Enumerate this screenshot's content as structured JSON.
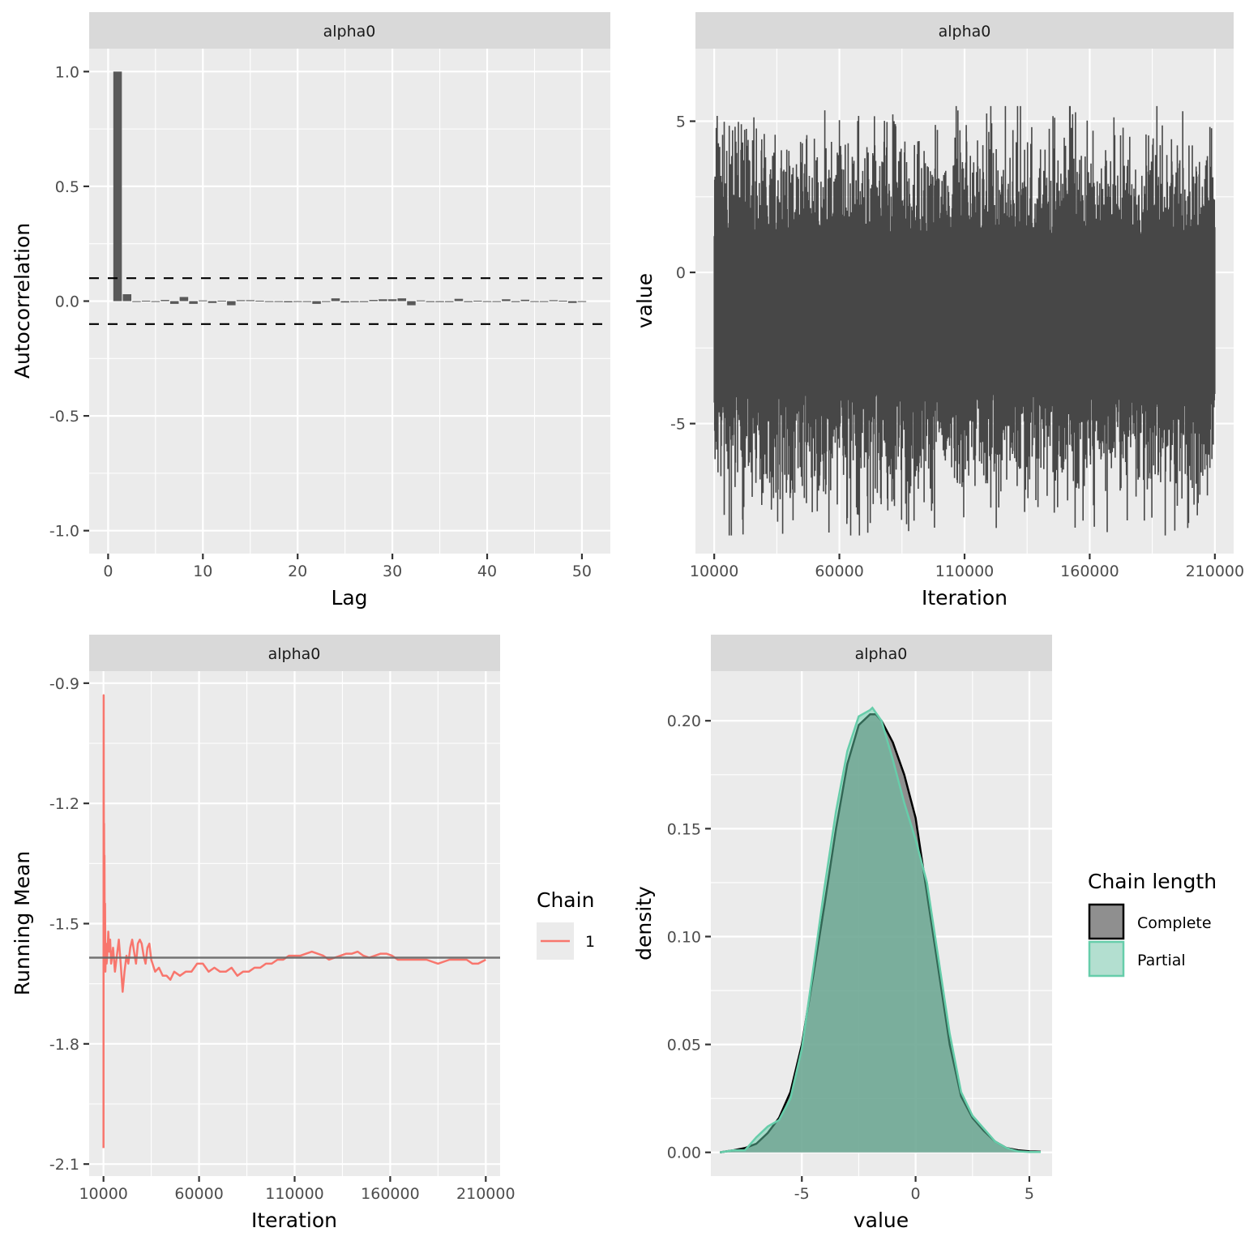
{
  "chart_data": [
    {
      "id": "acf",
      "type": "bar",
      "facet": "alpha0",
      "title": "",
      "xlabel": "Lag",
      "ylabel": "Autocorrelation",
      "xlim": [
        -2,
        53
      ],
      "ylim": [
        -1.1,
        1.1
      ],
      "xticks": [
        0,
        10,
        20,
        30,
        40,
        50
      ],
      "xtick_labels": [
        "0",
        "10",
        "20",
        "30",
        "40",
        "50"
      ],
      "yticks": [
        -1.0,
        -0.5,
        0.0,
        0.5,
        1.0
      ],
      "ytick_labels": [
        "-1.0",
        "-0.5",
        "0.0",
        "0.5",
        "1.0"
      ],
      "confidence_band": [
        -0.1,
        0.1
      ],
      "bar_color": "#595959",
      "x": [
        1,
        2,
        3,
        4,
        5,
        6,
        7,
        8,
        9,
        10,
        11,
        12,
        13,
        14,
        15,
        16,
        17,
        18,
        19,
        20,
        21,
        22,
        23,
        24,
        25,
        26,
        27,
        28,
        29,
        30,
        31,
        32,
        33,
        34,
        35,
        36,
        37,
        38,
        39,
        40,
        41,
        42,
        43,
        44,
        45,
        46,
        47,
        48,
        49,
        50
      ],
      "values": [
        1.0,
        0.03,
        -0.003,
        0.002,
        0.0,
        0.005,
        -0.012,
        0.018,
        -0.012,
        0.003,
        -0.008,
        0.002,
        -0.018,
        0.004,
        0.004,
        0.002,
        0.0,
        0.0,
        -0.005,
        -0.003,
        -0.003,
        -0.012,
        0.0,
        0.012,
        -0.006,
        -0.004,
        -0.004,
        0.005,
        0.008,
        0.008,
        0.012,
        -0.018,
        0.003,
        -0.004,
        -0.004,
        -0.004,
        0.01,
        -0.004,
        0.002,
        0.0,
        0.0,
        0.008,
        -0.004,
        0.006,
        0.0,
        -0.003,
        0.004,
        0.002,
        -0.008,
        0.0
      ]
    },
    {
      "id": "trace",
      "type": "line",
      "facet": "alpha0",
      "xlabel": "Iteration",
      "ylabel": "value",
      "xlim": [
        2500,
        217500
      ],
      "ylim": [
        -9.3,
        7.4
      ],
      "xticks": [
        10000,
        60000,
        110000,
        160000,
        210000
      ],
      "xtick_labels": [
        "10000",
        "60000",
        "110000",
        "160000",
        "210000"
      ],
      "yticks": [
        -5,
        0,
        5
      ],
      "ytick_labels": [
        "-5",
        "0",
        "5"
      ],
      "line_color": "#474747",
      "summary": {
        "center": -1.6,
        "typical_low": -5.2,
        "typical_high": 2.2,
        "min": -8.7,
        "max": 5.5,
        "n_iterations": 200000
      }
    },
    {
      "id": "running-mean",
      "type": "line",
      "facet": "alpha0",
      "xlabel": "Iteration",
      "ylabel": "Running Mean",
      "xlim": [
        2500,
        217500
      ],
      "ylim": [
        -2.13,
        -0.87
      ],
      "xticks": [
        10000,
        60000,
        110000,
        160000,
        210000
      ],
      "xtick_labels": [
        "10000",
        "60000",
        "110000",
        "160000",
        "210000"
      ],
      "yticks": [
        -2.1,
        -1.8,
        -1.5,
        -1.2,
        -0.9
      ],
      "ytick_labels": [
        "-2.1",
        "-1.8",
        "-1.5",
        "-1.2",
        "-0.9"
      ],
      "reference_line": -1.585,
      "reference_color": "#666666",
      "legend": {
        "title": "Chain",
        "entries": [
          {
            "label": "1",
            "color": "#F8766D"
          }
        ]
      },
      "series": [
        {
          "name": "1",
          "color": "#F8766D",
          "x": [
            10000,
            10050,
            10100,
            10150,
            10200,
            10300,
            10400,
            10500,
            10600,
            10800,
            11000,
            11300,
            11600,
            12000,
            12500,
            13000,
            13500,
            14000,
            15000,
            16000,
            17000,
            18000,
            19000,
            20000,
            21000,
            22000,
            23000,
            24000,
            25000,
            26000,
            27000,
            28000,
            29000,
            30000,
            31000,
            32000,
            33000,
            34000,
            35000,
            37000,
            39000,
            41000,
            43000,
            45000,
            47000,
            50000,
            53000,
            56000,
            59000,
            62000,
            65000,
            68000,
            71000,
            74000,
            77000,
            80000,
            83000,
            86000,
            89000,
            92000,
            95000,
            98000,
            101000,
            104000,
            107000,
            110000,
            113000,
            116000,
            119000,
            122000,
            125000,
            128000,
            131000,
            134000,
            137000,
            140000,
            143000,
            146000,
            149000,
            152000,
            155000,
            158000,
            161000,
            164000,
            167000,
            170000,
            173000,
            176000,
            179000,
            182000,
            185000,
            188000,
            191000,
            194000,
            197000,
            200000,
            203000,
            206000,
            210000
          ],
          "values": [
            -2.06,
            -1.2,
            -0.93,
            -1.15,
            -1.35,
            -1.25,
            -1.4,
            -1.33,
            -1.5,
            -1.45,
            -1.62,
            -1.55,
            -1.6,
            -1.58,
            -1.52,
            -1.57,
            -1.54,
            -1.6,
            -1.56,
            -1.62,
            -1.58,
            -1.54,
            -1.6,
            -1.67,
            -1.62,
            -1.58,
            -1.6,
            -1.56,
            -1.54,
            -1.57,
            -1.6,
            -1.55,
            -1.54,
            -1.55,
            -1.58,
            -1.6,
            -1.56,
            -1.55,
            -1.59,
            -1.62,
            -1.61,
            -1.63,
            -1.63,
            -1.64,
            -1.62,
            -1.63,
            -1.62,
            -1.62,
            -1.6,
            -1.6,
            -1.62,
            -1.61,
            -1.62,
            -1.62,
            -1.61,
            -1.63,
            -1.62,
            -1.62,
            -1.61,
            -1.61,
            -1.6,
            -1.6,
            -1.59,
            -1.59,
            -1.58,
            -1.58,
            -1.58,
            -1.575,
            -1.57,
            -1.575,
            -1.58,
            -1.59,
            -1.585,
            -1.58,
            -1.575,
            -1.575,
            -1.57,
            -1.58,
            -1.585,
            -1.58,
            -1.575,
            -1.575,
            -1.58,
            -1.59,
            -1.59,
            -1.59,
            -1.59,
            -1.59,
            -1.59,
            -1.595,
            -1.6,
            -1.595,
            -1.59,
            -1.59,
            -1.59,
            -1.59,
            -1.6,
            -1.6,
            -1.59
          ]
        }
      ]
    },
    {
      "id": "density",
      "type": "area",
      "facet": "alpha0",
      "xlabel": "value",
      "ylabel": "density",
      "xlim": [
        -9.0,
        6.0
      ],
      "ylim": [
        -0.011,
        0.223
      ],
      "xticks": [
        -5,
        0,
        5
      ],
      "xtick_labels": [
        "-5",
        "0",
        "5"
      ],
      "yticks": [
        0.0,
        0.05,
        0.1,
        0.15,
        0.2
      ],
      "ytick_labels": [
        "0.00",
        "0.05",
        "0.10",
        "0.15",
        "0.20"
      ],
      "legend": {
        "title": "Chain length",
        "entries": [
          {
            "label": "Complete",
            "fill": "#8f8f8f",
            "stroke": "#000000"
          },
          {
            "label": "Partial",
            "fill": "#b3dfd0",
            "stroke": "#66cdaa"
          }
        ]
      },
      "series": [
        {
          "name": "Complete",
          "fill": "#7f7f7f",
          "stroke": "#000000",
          "x": [
            -8.6,
            -8.0,
            -7.5,
            -7.0,
            -6.5,
            -6.0,
            -5.5,
            -5.0,
            -4.5,
            -4.0,
            -3.5,
            -3.0,
            -2.5,
            -2.0,
            -1.75,
            -1.5,
            -1.0,
            -0.5,
            0.0,
            0.5,
            1.0,
            1.5,
            2.0,
            2.5,
            3.0,
            3.5,
            4.0,
            4.5,
            5.0,
            5.5
          ],
          "values": [
            0.0,
            0.001,
            0.002,
            0.004,
            0.009,
            0.016,
            0.028,
            0.05,
            0.082,
            0.115,
            0.15,
            0.18,
            0.198,
            0.203,
            0.203,
            0.2,
            0.19,
            0.175,
            0.155,
            0.12,
            0.085,
            0.05,
            0.026,
            0.016,
            0.01,
            0.005,
            0.002,
            0.001,
            0.0005,
            0.0003
          ]
        },
        {
          "name": "Partial",
          "fill": "#66cdaa",
          "stroke": "#66cdaa",
          "x": [
            -8.6,
            -8.0,
            -7.5,
            -7.0,
            -6.5,
            -6.0,
            -5.5,
            -5.0,
            -4.5,
            -4.0,
            -3.5,
            -3.0,
            -2.5,
            -2.0,
            -1.9,
            -1.5,
            -1.0,
            -0.5,
            0.0,
            0.5,
            1.0,
            1.5,
            2.0,
            2.5,
            3.0,
            3.5,
            4.0,
            4.5,
            5.0,
            5.5
          ],
          "values": [
            0.0,
            0.001,
            0.001,
            0.007,
            0.012,
            0.015,
            0.025,
            0.048,
            0.085,
            0.123,
            0.158,
            0.186,
            0.202,
            0.205,
            0.206,
            0.2,
            0.182,
            0.162,
            0.145,
            0.125,
            0.09,
            0.055,
            0.028,
            0.017,
            0.011,
            0.005,
            0.002,
            0.0005,
            0.0002,
            0.0002
          ]
        }
      ]
    }
  ]
}
